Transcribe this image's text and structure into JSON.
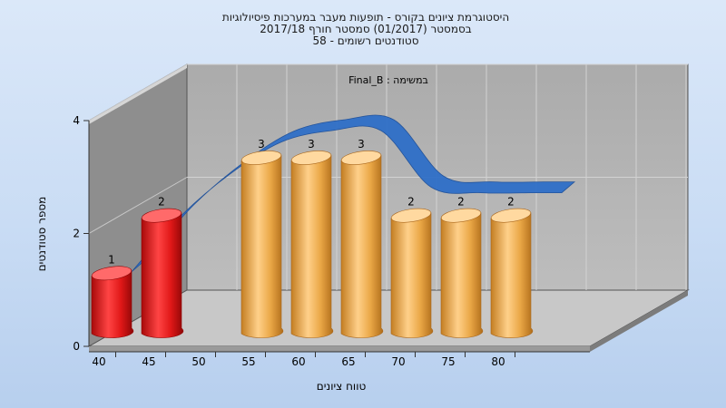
{
  "chart_data": {
    "type": "bar",
    "title_lines": [
      "היסטוגרמת ציונים בקורס - תופעות מעבר במערכות פיסיולוגיות",
      "בסמסטר  (01/2017)  סמסטר חורף 2017/18",
      "סטודנטים רשומים - 58"
    ],
    "annotation": "במשימה : Final_B",
    "xlabel": "טווח ציונים",
    "ylabel": "מספר סטודנטים",
    "categories": [
      "40",
      "45",
      "50",
      "55",
      "60",
      "65",
      "70",
      "75",
      "80"
    ],
    "values": [
      1,
      2,
      null,
      3,
      3,
      3,
      2,
      2,
      2
    ],
    "data_labels": [
      "1",
      "2",
      "",
      "3",
      "3",
      "3",
      "2",
      "2",
      "2"
    ],
    "bar_colors": [
      "#e01818",
      "#e01818",
      null,
      "#eaa746",
      "#eaa746",
      "#eaa746",
      "#eaa746",
      "#eaa746",
      "#eaa746"
    ],
    "trend_values": [
      1,
      2,
      2.75,
      3.3,
      3.5,
      3.5,
      2.5,
      2.4,
      2.4
    ],
    "trend_color": "#2f6fc8",
    "yticks": [
      "0",
      "2",
      "4"
    ],
    "ylim": [
      0,
      4
    ],
    "grid": true
  }
}
